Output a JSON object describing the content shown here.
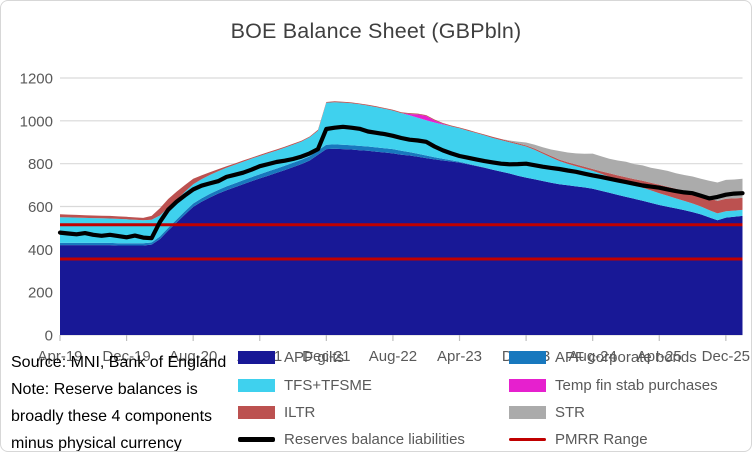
{
  "title": "BOE Balance Sheet (GBPbln)",
  "note_lines": [
    "Source: MNI, Bank of England",
    "Note: Reserve balances is",
    "broadly these 4 components",
    "minus physical currency"
  ],
  "colors": {
    "apf_gilts": "#181896",
    "apf_corporate_bonds": "#1878BE",
    "tfs_tfsme": "#3FD1EE",
    "temp_fin_stab": "#E620CE",
    "iltr": "#BC5150",
    "str": "#ABABAB",
    "reserves_line": "#000000",
    "pmrr_line": "#C00000",
    "gridline": "#D9D9D9",
    "axis_text": "#595959",
    "title_text": "#3F3F3F"
  },
  "legend": [
    {
      "label": "APF gilts",
      "type": "fill",
      "color": "#181896"
    },
    {
      "label": "APF corporate bonds",
      "type": "fill",
      "color": "#1878BE"
    },
    {
      "label": "TFS+TFSME",
      "type": "fill",
      "color": "#3FD1EE"
    },
    {
      "label": "Temp fin stab purchases",
      "type": "fill",
      "color": "#E620CE"
    },
    {
      "label": "ILTR",
      "type": "fill",
      "color": "#BC5150"
    },
    {
      "label": "STR",
      "type": "fill",
      "color": "#ABABAB"
    },
    {
      "label": "Reserves balance liabilities",
      "type": "line",
      "color": "#000000"
    },
    {
      "label": "PMRR Range",
      "type": "line",
      "color": "#C00000"
    }
  ],
  "chart_data": {
    "type": "area",
    "subtype": "stacked-area-with-line",
    "title": "BOE Balance Sheet (GBPbln)",
    "x_start": "Apr-19",
    "x_interval": "monthly",
    "n_points": 83,
    "x_tick_labels": [
      "Apr-19",
      "Dec-19",
      "Aug-20",
      "Apr-21",
      "Dec-21",
      "Aug-22",
      "Apr-23",
      "Dec-23",
      "Aug-24",
      "Apr-25",
      "Dec-25"
    ],
    "x_tick_indices": [
      0,
      8,
      16,
      24,
      32,
      40,
      48,
      56,
      64,
      72,
      80
    ],
    "ylim": [
      0,
      1200
    ],
    "y_ticks": [
      0,
      200,
      400,
      600,
      800,
      1000,
      1200
    ],
    "grid": "horizontal",
    "legend_position": "bottom",
    "series": [
      {
        "name": "APF gilts",
        "role": "stack",
        "color": "#181896",
        "values": [
          420,
          420,
          420,
          420,
          420,
          420,
          420,
          418,
          418,
          418,
          418,
          422,
          448,
          488,
          525,
          562,
          598,
          622,
          642,
          660,
          676,
          690,
          704,
          718,
          731,
          744,
          757,
          770,
          784,
          798,
          815,
          842,
          868,
          870,
          868,
          866,
          863,
          860,
          856,
          852,
          848,
          842,
          838,
          832,
          826,
          820,
          815,
          810,
          805,
          797,
          789,
          781,
          772,
          763,
          754,
          744,
          735,
          727,
          719,
          711,
          704,
          699,
          694,
          689,
          683,
          674,
          664,
          654,
          645,
          636,
          627,
          617,
          607,
          599,
          591,
          583,
          574,
          563,
          549,
          536,
          548,
          552,
          556
        ]
      },
      {
        "name": "APF corporate bonds",
        "role": "stack",
        "color": "#1878BE",
        "values": [
          10,
          10,
          10,
          10,
          10,
          10,
          10,
          10,
          10,
          10,
          10,
          10,
          12,
          13,
          14,
          15,
          16,
          16,
          17,
          17,
          18,
          18,
          19,
          19,
          20,
          20,
          20,
          20,
          20,
          20,
          20,
          20,
          20,
          20,
          20,
          20,
          20,
          20,
          20,
          20,
          20,
          18,
          16,
          14,
          12,
          10,
          8,
          6,
          4,
          3,
          2,
          1,
          0,
          0,
          0,
          0,
          0,
          0,
          0,
          0,
          0,
          0,
          0,
          0,
          0,
          0,
          0,
          0,
          0,
          0,
          0,
          0,
          0,
          0,
          0,
          0,
          0,
          0,
          0,
          0,
          0,
          0,
          0
        ]
      },
      {
        "name": "TFS+TFSME",
        "role": "stack",
        "color": "#3FD1EE",
        "values": [
          120,
          119,
          118,
          117,
          116,
          115,
          114,
          114,
          112,
          110,
          108,
          106,
          98,
          94,
          92,
          91,
          90,
          89,
          88,
          88,
          87,
          87,
          86,
          86,
          85,
          85,
          84,
          84,
          84,
          85,
          88,
          92,
          196,
          197,
          197,
          196,
          194,
          191,
          188,
          184,
          180,
          176,
          172,
          168,
          165,
          162,
          160,
          158,
          156,
          154,
          152,
          150,
          148,
          147,
          146,
          146,
          145,
          138,
          128,
          118,
          108,
          100,
          94,
          88,
          83,
          79,
          75,
          71,
          68,
          64,
          61,
          58,
          55,
          51,
          47,
          43,
          40,
          37,
          34,
          32,
          30,
          29,
          28
        ]
      },
      {
        "name": "Temp fin stab purchases",
        "role": "stack",
        "color": "#E620CE",
        "values": [
          0,
          0,
          0,
          0,
          0,
          0,
          0,
          0,
          0,
          0,
          0,
          0,
          0,
          0,
          0,
          0,
          0,
          0,
          0,
          0,
          0,
          0,
          0,
          0,
          0,
          0,
          0,
          0,
          0,
          0,
          0,
          0,
          0,
          0,
          0,
          0,
          0,
          0,
          0,
          0,
          0,
          0,
          6,
          16,
          20,
          10,
          3,
          0,
          0,
          0,
          0,
          0,
          0,
          0,
          0,
          0,
          0,
          0,
          0,
          0,
          0,
          0,
          0,
          0,
          0,
          0,
          0,
          0,
          0,
          0,
          0,
          0,
          0,
          0,
          0,
          0,
          0,
          0,
          0,
          0,
          0,
          0,
          0
        ]
      },
      {
        "name": "ILTR",
        "role": "stack",
        "color": "#BC5150",
        "values": [
          14,
          13,
          13,
          12,
          12,
          12,
          12,
          12,
          12,
          11,
          11,
          18,
          34,
          40,
          38,
          32,
          26,
          18,
          13,
          9,
          7,
          6,
          6,
          5,
          5,
          5,
          5,
          5,
          5,
          4,
          4,
          4,
          4,
          4,
          4,
          4,
          4,
          4,
          4,
          4,
          4,
          4,
          4,
          4,
          4,
          4,
          4,
          4,
          4,
          4,
          4,
          4,
          5,
          5,
          5,
          5,
          5,
          6,
          6,
          7,
          7,
          8,
          8,
          9,
          9,
          12,
          16,
          20,
          24,
          28,
          32,
          36,
          40,
          42,
          45,
          47,
          50,
          52,
          55,
          58,
          58,
          57,
          56
        ]
      },
      {
        "name": "STR",
        "role": "stack",
        "color": "#ABABAB",
        "values": [
          0,
          0,
          0,
          0,
          0,
          0,
          0,
          0,
          0,
          0,
          0,
          0,
          0,
          0,
          0,
          0,
          0,
          0,
          0,
          0,
          0,
          0,
          0,
          0,
          0,
          0,
          0,
          0,
          0,
          0,
          0,
          0,
          0,
          0,
          0,
          0,
          0,
          0,
          0,
          0,
          0,
          0,
          0,
          0,
          0,
          0,
          0,
          0,
          0,
          0,
          0,
          0,
          0,
          0,
          3,
          8,
          14,
          18,
          24,
          30,
          40,
          45,
          52,
          60,
          72,
          70,
          68,
          70,
          72,
          70,
          72,
          70,
          72,
          74,
          72,
          74,
          76,
          78,
          82,
          86,
          88,
          88,
          90
        ]
      },
      {
        "name": "Reserves balance liabilities",
        "role": "line",
        "color": "#000000",
        "values": [
          478,
          474,
          470,
          476,
          468,
          463,
          468,
          462,
          456,
          464,
          455,
          452,
          528,
          585,
          622,
          652,
          680,
          697,
          708,
          718,
          738,
          748,
          758,
          772,
          788,
          798,
          808,
          814,
          822,
          833,
          848,
          868,
          962,
          968,
          972,
          968,
          963,
          950,
          944,
          938,
          930,
          920,
          912,
          908,
          902,
          880,
          862,
          848,
          836,
          828,
          820,
          812,
          806,
          800,
          797,
          798,
          800,
          793,
          786,
          780,
          775,
          768,
          762,
          753,
          745,
          738,
          730,
          722,
          714,
          706,
          698,
          693,
          688,
          680,
          672,
          666,
          662,
          650,
          638,
          645,
          655,
          660,
          662
        ]
      }
    ],
    "reference_lines": {
      "name": "PMRR Range",
      "color": "#C00000",
      "values": [
        515,
        355
      ]
    }
  }
}
